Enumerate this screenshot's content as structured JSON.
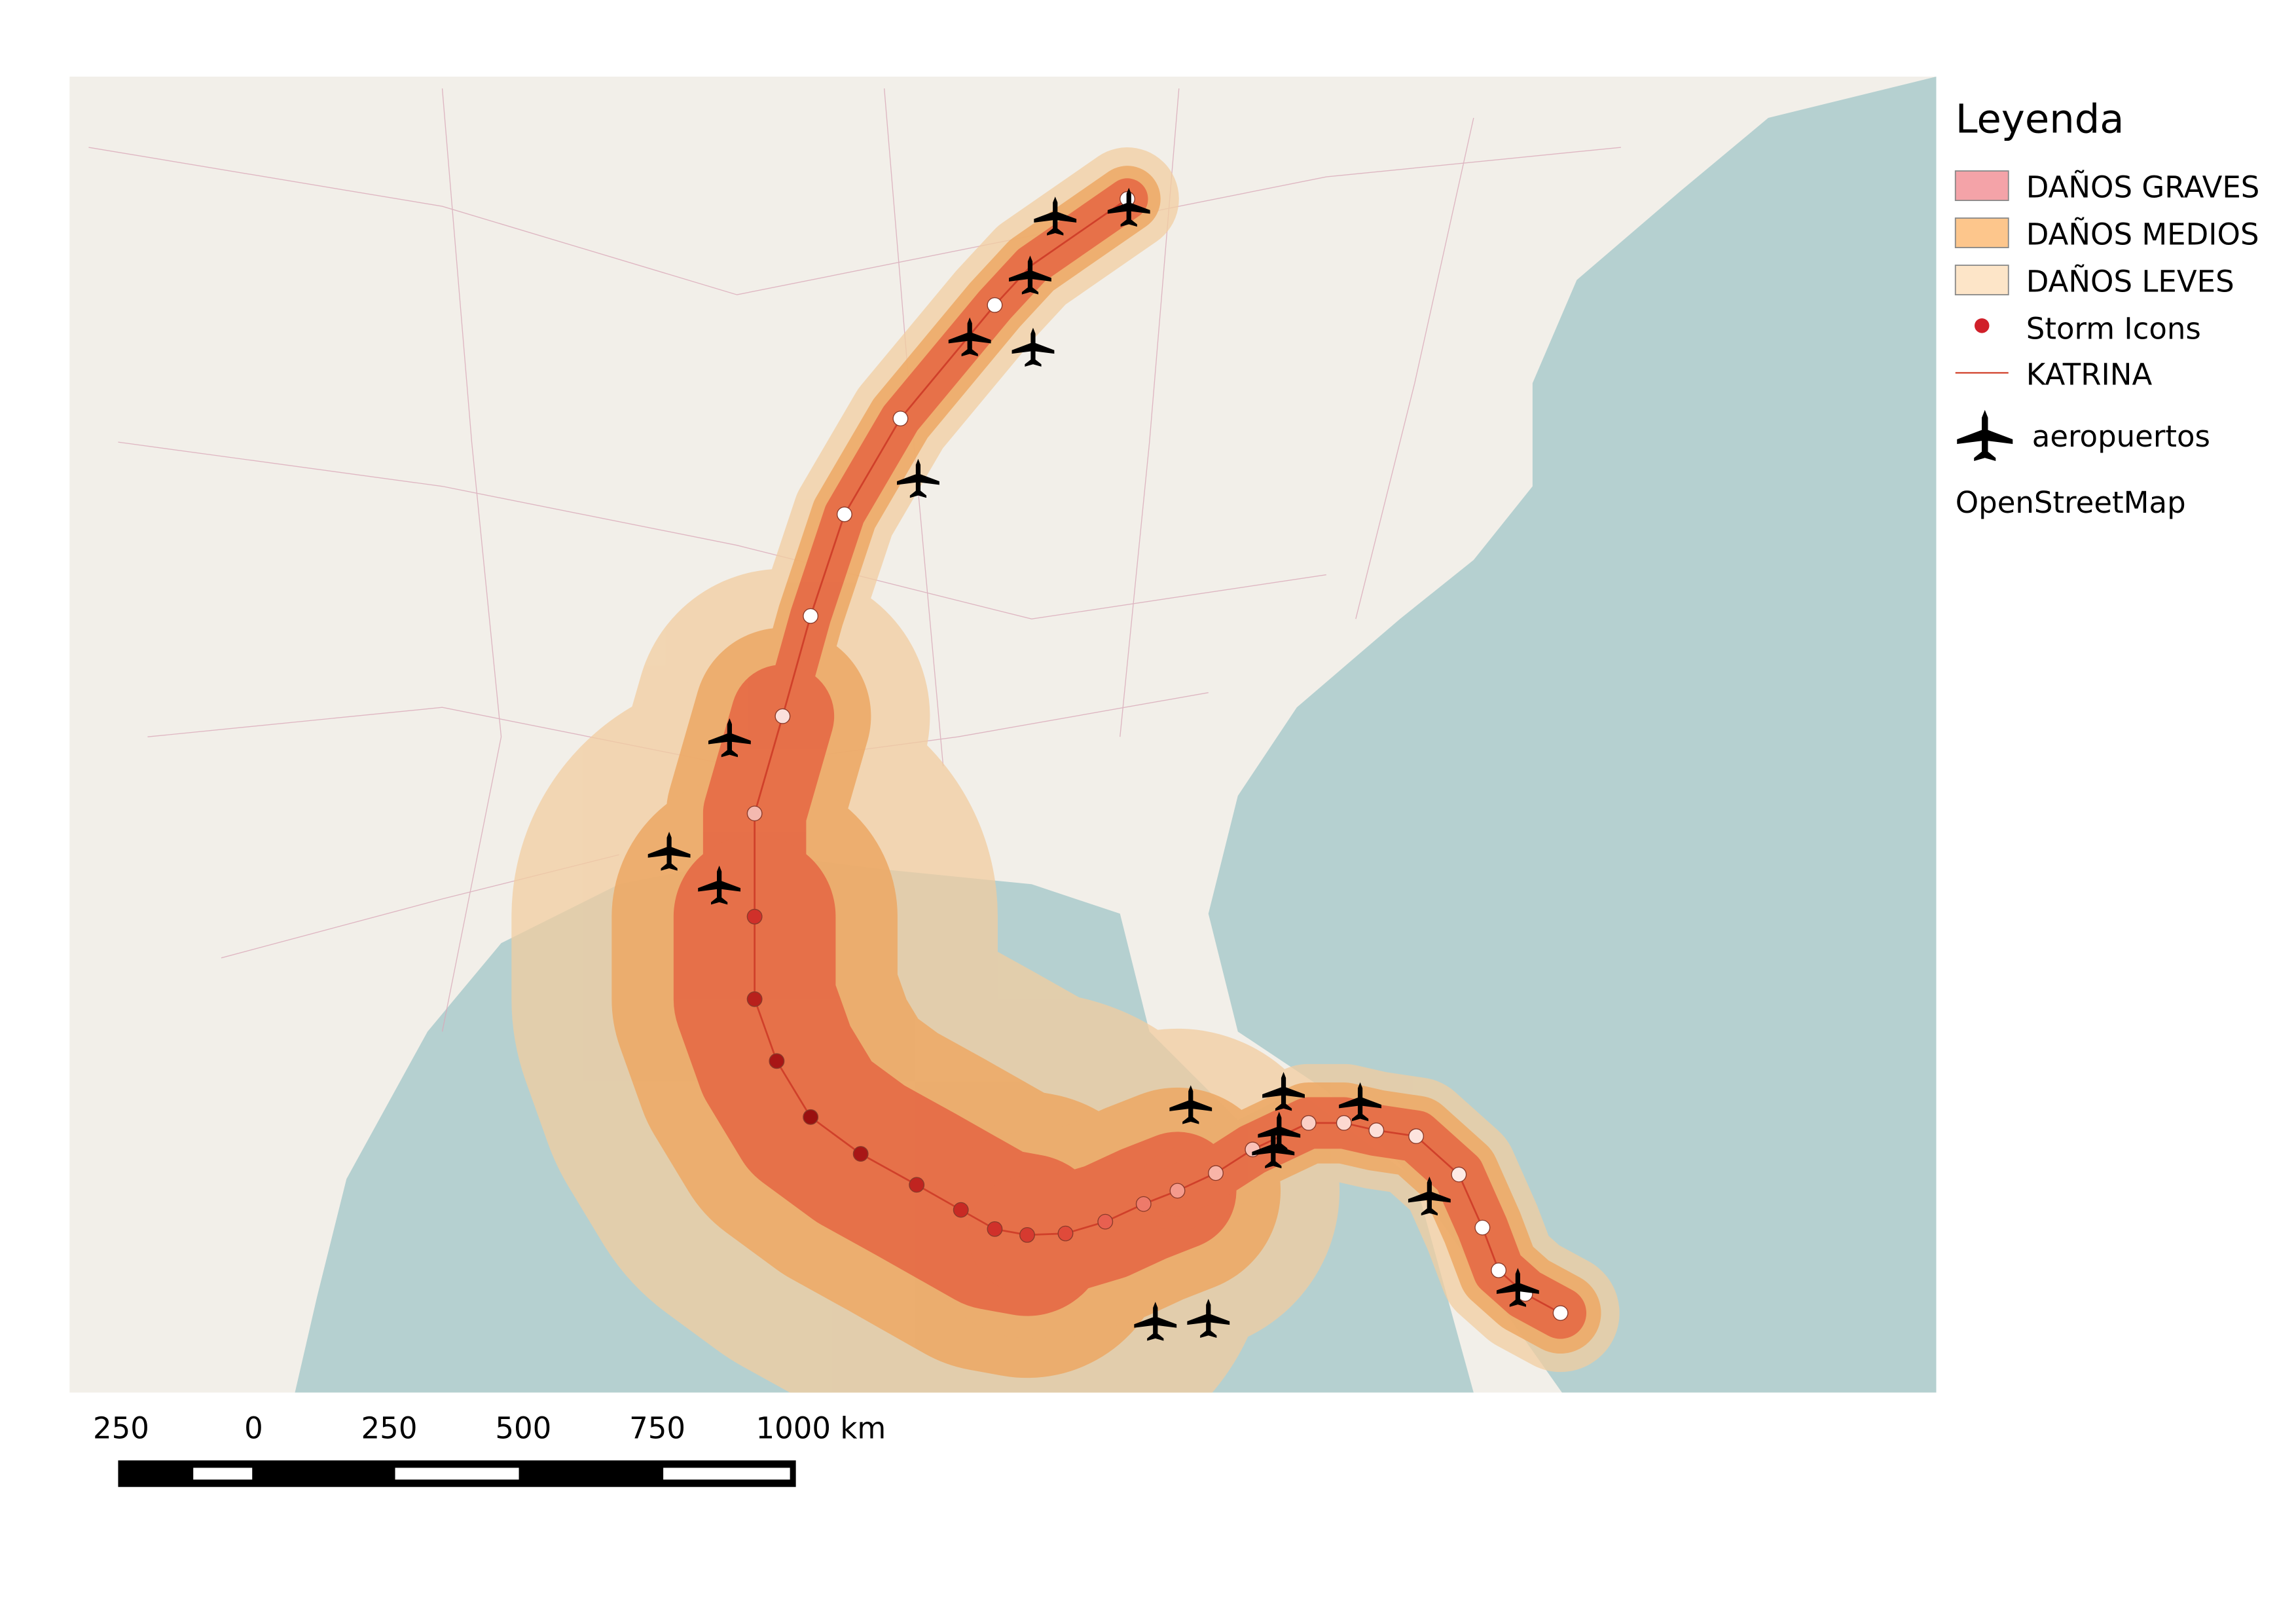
{
  "legend": {
    "title": "Leyenda",
    "items": [
      "DAÑOS GRAVES",
      "DAÑOS MEDIOS",
      "DAÑOS LEVES",
      "Storm Icons",
      "KATRINA",
      "aeropuertos"
    ],
    "source": "OpenStreetMap"
  },
  "scale_bar": {
    "labels": [
      "250",
      "0",
      "250",
      "500",
      "750",
      "1000 km"
    ]
  }
}
